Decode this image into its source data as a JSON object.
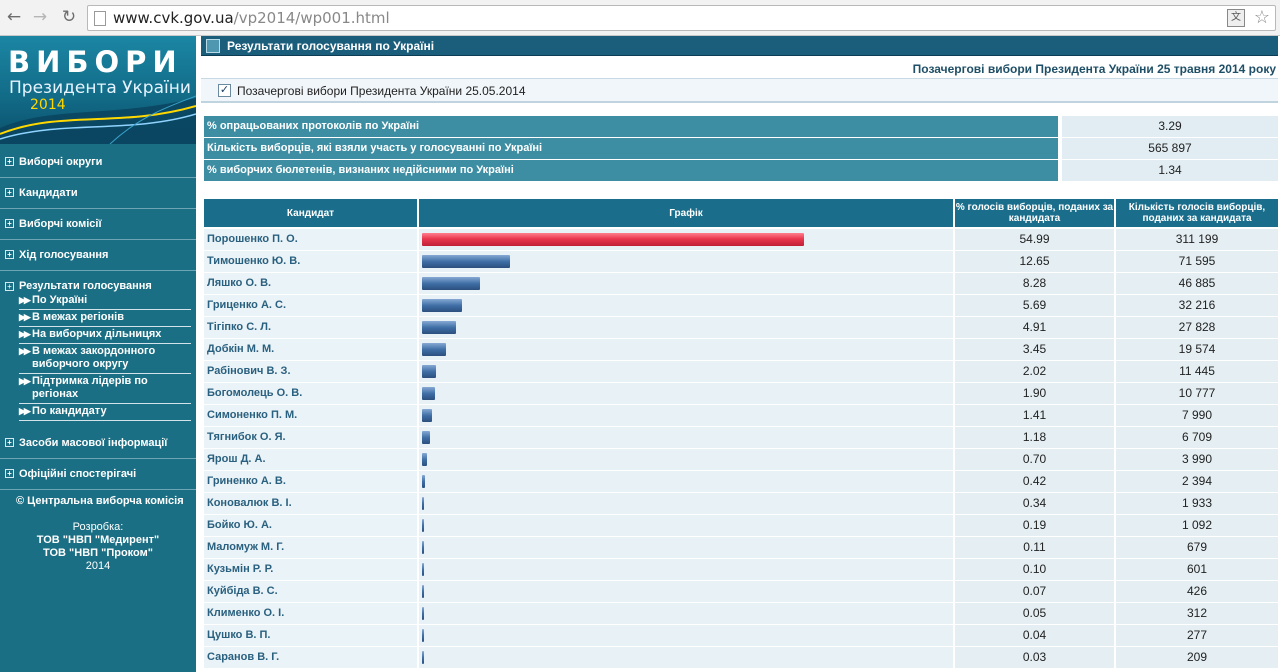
{
  "browser": {
    "url_host": "www.cvk.gov.ua",
    "url_path": "/vp2014/wp001.html"
  },
  "banner": {
    "title": "ВИБОРИ",
    "subtitle": "Президента України",
    "year": "2014"
  },
  "sidebar": {
    "items_top": [
      {
        "label": "Виборчі округи"
      },
      {
        "label": "Кандидати"
      },
      {
        "label": "Виборчі комісії"
      },
      {
        "label": "Хід голосування"
      }
    ],
    "results": {
      "label": "Результати голосування",
      "sub": [
        {
          "label": "По Україні"
        },
        {
          "label": "В межах регіонів"
        },
        {
          "label": "На виборчих дільницях"
        },
        {
          "label": "В межах закордонного виборчого округу"
        },
        {
          "label": "Підтримка лідерів по регіонах"
        },
        {
          "label": "По кандидату"
        }
      ]
    },
    "items_bottom": [
      {
        "label": "Засоби масової інформації"
      },
      {
        "label": "Офіційні спостерігачі"
      }
    ],
    "copyright": "© Центральна виборча комісія",
    "dev_label": "Розробка:",
    "dev_1": "ТОВ \"НВП \"Медирент\"",
    "dev_2": "ТОВ \"НВП \"Проком\"",
    "dev_year": "2014"
  },
  "main": {
    "page_title": "Результати голосування по Україні",
    "election_title": "Позачергові вибори Президента України 25 травня 2014 року",
    "selected_election": "Позачергові вибори Президента України 25.05.2014",
    "stats": [
      {
        "label": "% опрацьованих протоколів по Україні",
        "value": "3.29"
      },
      {
        "label": "Кількість виборців, які взяли участь у голосуванні по Україні",
        "value": "565 897"
      },
      {
        "label": "% виборчих бюлетенів, визнаних недійсними по Україні",
        "value": "1.34"
      }
    ],
    "table_headers": {
      "candidate": "Кандидат",
      "chart": "Графік",
      "pct": "% голосів виборців, поданих за кандидата",
      "votes": "Кількість голосів виборців, поданих за кандидата"
    }
  },
  "colors": {
    "leader_bar": "#e8374e",
    "other_bar": "#3f6fa6"
  },
  "chart_data": {
    "type": "bar",
    "categories": [
      "Порошенко П. О.",
      "Тимошенко Ю. В.",
      "Ляшко О. В.",
      "Гриценко А. С.",
      "Тігіпко С. Л.",
      "Добкін М. М.",
      "Рабінович В. З.",
      "Богомолець О. В.",
      "Симоненко П. М.",
      "Тягнибок О. Я.",
      "Ярош Д. А.",
      "Гриненко А. В.",
      "Коновалюк В. І.",
      "Бойко Ю. А.",
      "Маломуж М. Г.",
      "Кузьмін Р. Р.",
      "Куйбіда В. С.",
      "Клименко О. І.",
      "Цушко В. П.",
      "Саранов В. Г."
    ],
    "values": [
      54.99,
      12.65,
      8.28,
      5.69,
      4.91,
      3.45,
      2.02,
      1.9,
      1.41,
      1.18,
      0.7,
      0.42,
      0.34,
      0.19,
      0.11,
      0.1,
      0.07,
      0.05,
      0.04,
      0.03
    ],
    "votes": [
      "311 199",
      "71 595",
      "46 885",
      "32 216",
      "27 828",
      "19 574",
      "11 445",
      "10 777",
      "7 990",
      "6 709",
      "3 990",
      "2 394",
      "1 933",
      "1 092",
      "679",
      "601",
      "426",
      "312",
      "277",
      "209"
    ],
    "pct_labels": [
      "54.99",
      "12.65",
      "8.28",
      "5.69",
      "4.91",
      "3.45",
      "2.02",
      "1.90",
      "1.41",
      "1.18",
      "0.70",
      "0.42",
      "0.34",
      "0.19",
      "0.11",
      "0.10",
      "0.07",
      "0.05",
      "0.04",
      "0.03"
    ]
  }
}
